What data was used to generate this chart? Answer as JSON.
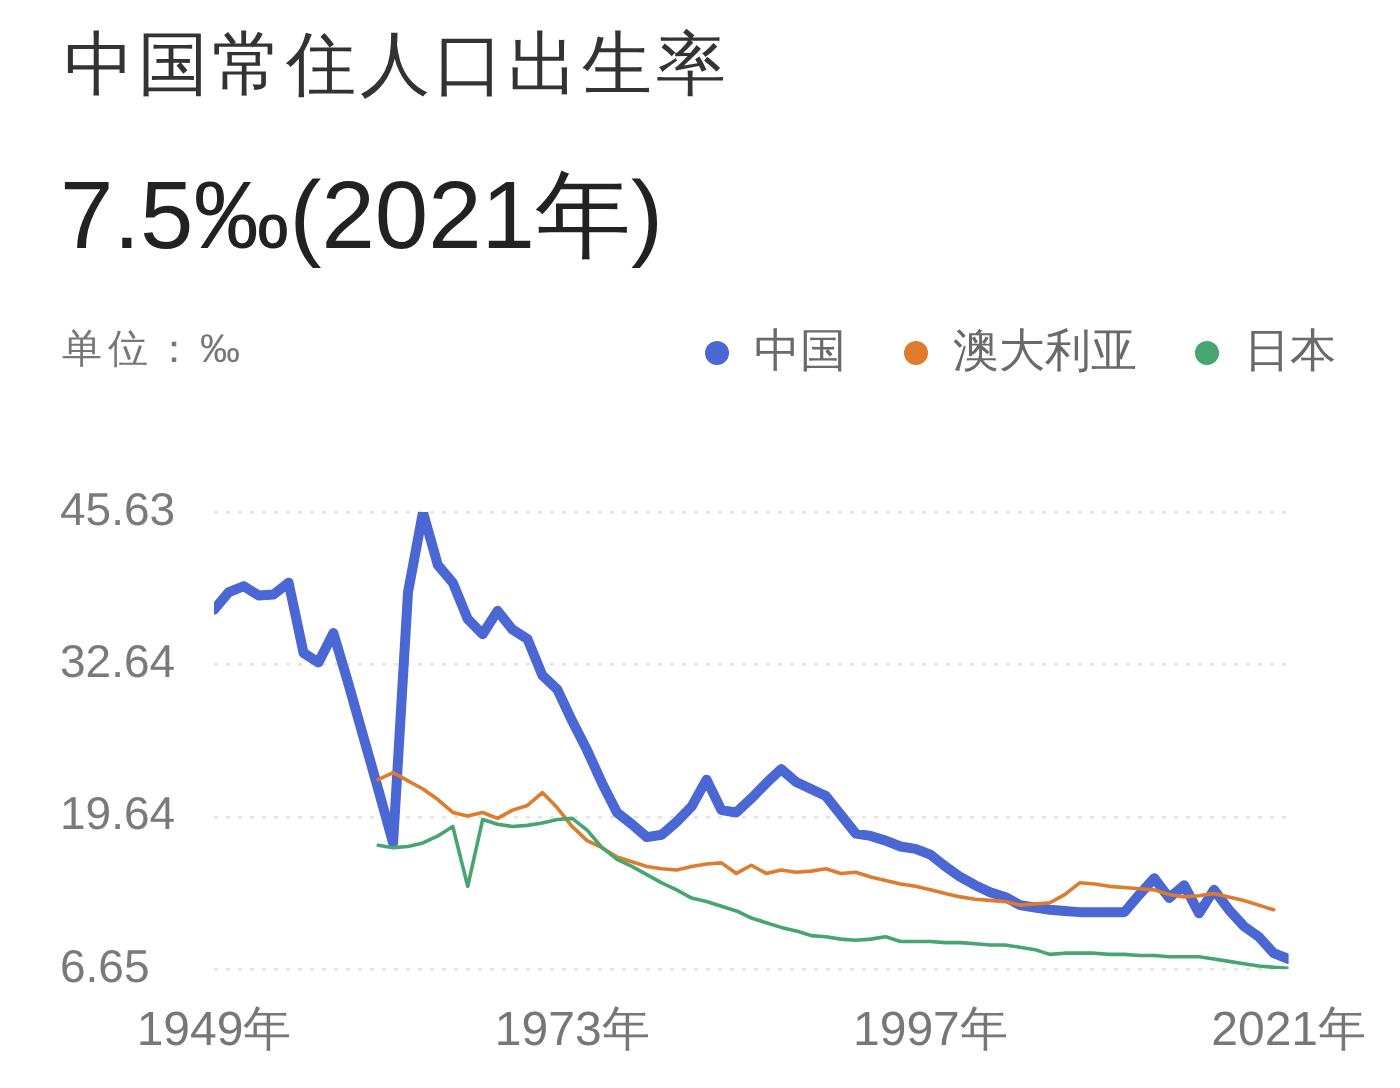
{
  "chart_data": {
    "type": "line",
    "title": "中国常住人口出生率",
    "subtitle": "7.5‰(2021年)",
    "ylabel": "单位：‰",
    "series": [
      {
        "name": "中国",
        "color": "#4b67d4",
        "x": [
          1949,
          1950,
          1951,
          1952,
          1953,
          1954,
          1955,
          1956,
          1957,
          1958,
          1959,
          1960,
          1961,
          1962,
          1963,
          1964,
          1965,
          1966,
          1967,
          1968,
          1969,
          1970,
          1971,
          1972,
          1973,
          1974,
          1975,
          1976,
          1977,
          1978,
          1979,
          1980,
          1981,
          1982,
          1983,
          1984,
          1985,
          1986,
          1987,
          1988,
          1989,
          1990,
          1991,
          1992,
          1993,
          1994,
          1995,
          1996,
          1997,
          1998,
          1999,
          2000,
          2001,
          2002,
          2003,
          2004,
          2005,
          2006,
          2007,
          2008,
          2009,
          2010,
          2011,
          2012,
          2013,
          2014,
          2015,
          2016,
          2017,
          2018,
          2019,
          2020,
          2021
        ],
        "values": [
          37.3,
          38.8,
          39.3,
          38.5,
          38.6,
          39.6,
          33.6,
          32.8,
          35.3,
          31.0,
          26.5,
          22.0,
          17.4,
          38.8,
          45.6,
          41.1,
          39.6,
          36.5,
          35.2,
          37.2,
          35.6,
          34.8,
          31.7,
          30.5,
          27.8,
          25.3,
          22.5,
          20.0,
          19.0,
          17.9,
          18.1,
          19.2,
          20.5,
          22.8,
          20.2,
          20.0,
          21.2,
          22.5,
          23.7,
          22.6,
          22.0,
          21.4,
          19.8,
          18.2,
          18.0,
          17.6,
          17.1,
          16.9,
          16.4,
          15.4,
          14.5,
          13.8,
          13.2,
          12.8,
          12.1,
          11.9,
          11.7,
          11.6,
          11.5,
          11.5,
          11.5,
          11.5,
          13.0,
          14.4,
          12.7,
          13.8,
          11.4,
          13.4,
          11.7,
          10.3,
          9.4,
          8.0,
          7.5
        ]
      },
      {
        "name": "澳大利亚",
        "color": "#de7b2c",
        "x": [
          1960,
          1961,
          1962,
          1963,
          1964,
          1965,
          1966,
          1967,
          1968,
          1969,
          1970,
          1971,
          1972,
          1973,
          1974,
          1975,
          1976,
          1977,
          1978,
          1979,
          1980,
          1981,
          1982,
          1983,
          1984,
          1985,
          1986,
          1987,
          1988,
          1989,
          1990,
          1991,
          1992,
          1993,
          1994,
          1995,
          1996,
          1997,
          1998,
          1999,
          2000,
          2001,
          2002,
          2003,
          2004,
          2005,
          2006,
          2007,
          2008,
          2009,
          2010,
          2011,
          2012,
          2013,
          2014,
          2015,
          2016,
          2017,
          2018,
          2019,
          2020
        ],
        "values": [
          22.8,
          23.4,
          22.7,
          22.0,
          21.1,
          20.0,
          19.7,
          20.0,
          19.5,
          20.2,
          20.6,
          21.7,
          20.4,
          18.8,
          17.6,
          17.0,
          16.2,
          15.8,
          15.4,
          15.2,
          15.1,
          15.4,
          15.6,
          15.7,
          14.8,
          15.5,
          14.8,
          15.1,
          14.9,
          15.0,
          15.2,
          14.8,
          14.9,
          14.5,
          14.2,
          13.9,
          13.7,
          13.4,
          13.1,
          12.8,
          12.6,
          12.5,
          12.4,
          12.1,
          12.2,
          12.3,
          13.0,
          14.0,
          13.9,
          13.7,
          13.6,
          13.5,
          13.4,
          13.0,
          12.8,
          12.9,
          13.1,
          12.8,
          12.5,
          12.1,
          11.7
        ]
      },
      {
        "name": "日本",
        "color": "#46a571",
        "x": [
          1960,
          1961,
          1962,
          1963,
          1964,
          1965,
          1966,
          1967,
          1968,
          1969,
          1970,
          1971,
          1972,
          1973,
          1974,
          1975,
          1976,
          1977,
          1978,
          1979,
          1980,
          1981,
          1982,
          1983,
          1984,
          1985,
          1986,
          1987,
          1988,
          1989,
          1990,
          1991,
          1992,
          1993,
          1994,
          1995,
          1996,
          1997,
          1998,
          1999,
          2000,
          2001,
          2002,
          2003,
          2004,
          2005,
          2006,
          2007,
          2008,
          2009,
          2010,
          2011,
          2012,
          2013,
          2014,
          2015,
          2016,
          2017,
          2018,
          2019,
          2020,
          2021
        ],
        "values": [
          17.2,
          17.0,
          17.1,
          17.4,
          18.0,
          18.8,
          13.7,
          19.4,
          19.0,
          18.8,
          18.9,
          19.1,
          19.4,
          19.5,
          18.5,
          17.0,
          16.0,
          15.4,
          14.7,
          14.0,
          13.4,
          12.7,
          12.4,
          12.0,
          11.6,
          11.0,
          10.6,
          10.2,
          9.9,
          9.5,
          9.4,
          9.2,
          9.1,
          9.2,
          9.4,
          9.0,
          9.0,
          9.0,
          8.9,
          8.9,
          8.8,
          8.7,
          8.7,
          8.5,
          8.3,
          7.9,
          8.0,
          8.0,
          8.0,
          7.9,
          7.9,
          7.8,
          7.8,
          7.7,
          7.7,
          7.7,
          7.5,
          7.3,
          7.1,
          6.9,
          6.8,
          6.7
        ]
      }
    ],
    "xlim": [
      1949,
      2021
    ],
    "xticks": [
      {
        "value": 1949,
        "label": "1949年"
      },
      {
        "value": 1973,
        "label": "1973年"
      },
      {
        "value": 1997,
        "label": "1997年"
      },
      {
        "value": 2021,
        "label": "2021年"
      }
    ],
    "ylim": [
      6.65,
      45.63
    ],
    "yticks": [
      6.65,
      19.64,
      32.64,
      45.63
    ],
    "grid": "y",
    "legend": "top right",
    "marker": "none",
    "line_style": "solid"
  }
}
